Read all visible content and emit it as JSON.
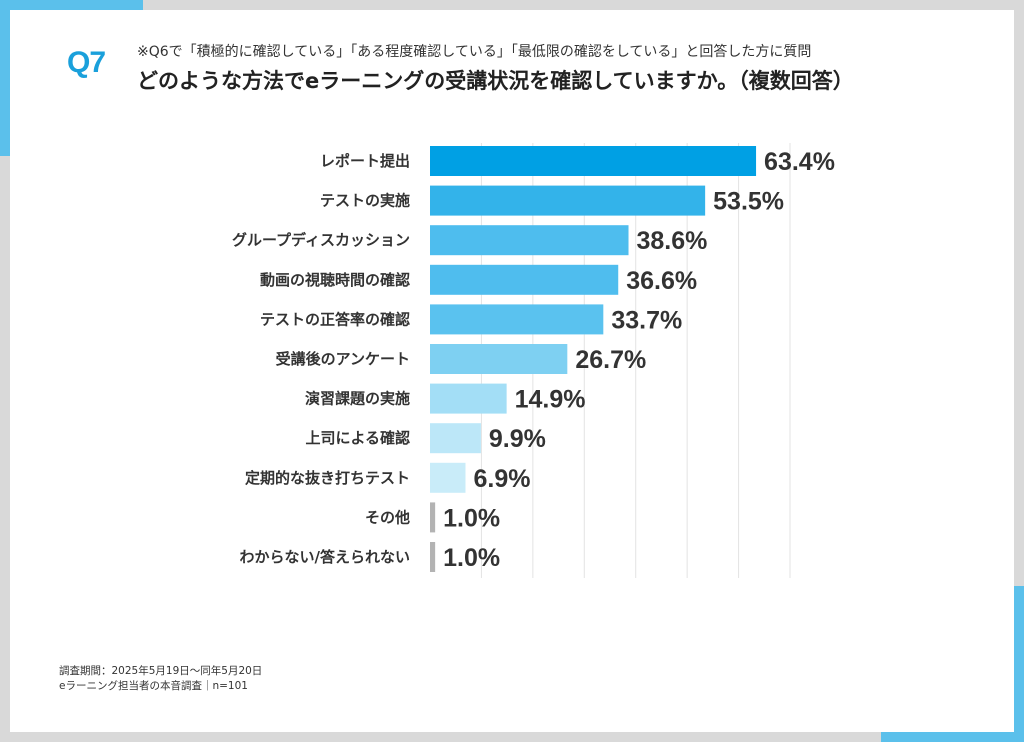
{
  "question_number": "Q7",
  "subtitle": "※Q6で「積極的に確認している」「ある程度確認している」「最低限の確認をしている」と回答した方に質問",
  "title": "どのような方法でeラーニングの受講状況を確認していますか。（複数回答）",
  "footnote": {
    "period": "調査期間：2025年5月19日〜同年5月20日",
    "survey": "eラーニング担当者の本音調査｜n=101"
  },
  "colors": {
    "accent": "#5bc0eb",
    "question_number": "#1aa0db",
    "bars": [
      "#00a0e4",
      "#33b3ea",
      "#4ebdee",
      "#4fbdee",
      "#5ac2ef",
      "#7ed0f2",
      "#a3def6",
      "#bce7f8",
      "#c9ecf9",
      "#b3b3b3",
      "#b3b3b3"
    ]
  },
  "chart_data": {
    "type": "bar",
    "orientation": "horizontal",
    "categories": [
      "レポート提出",
      "テストの実施",
      "グループディスカッション",
      "動画の視聴時間の確認",
      "テストの正答率の確認",
      "受講後のアンケート",
      "演習課題の実施",
      "上司による確認",
      "定期的な抜き打ちテスト",
      "その他",
      "わからない/答えられない"
    ],
    "values": [
      63.4,
      53.5,
      38.6,
      36.6,
      33.7,
      26.7,
      14.9,
      9.9,
      6.9,
      1.0,
      1.0
    ],
    "value_labels": [
      "63.4%",
      "53.5%",
      "38.6%",
      "36.6%",
      "33.7%",
      "26.7%",
      "14.9%",
      "9.9%",
      "6.9%",
      "1.0%",
      "1.0%"
    ],
    "xlim": [
      0,
      70
    ],
    "grid": true,
    "legend": "none"
  }
}
